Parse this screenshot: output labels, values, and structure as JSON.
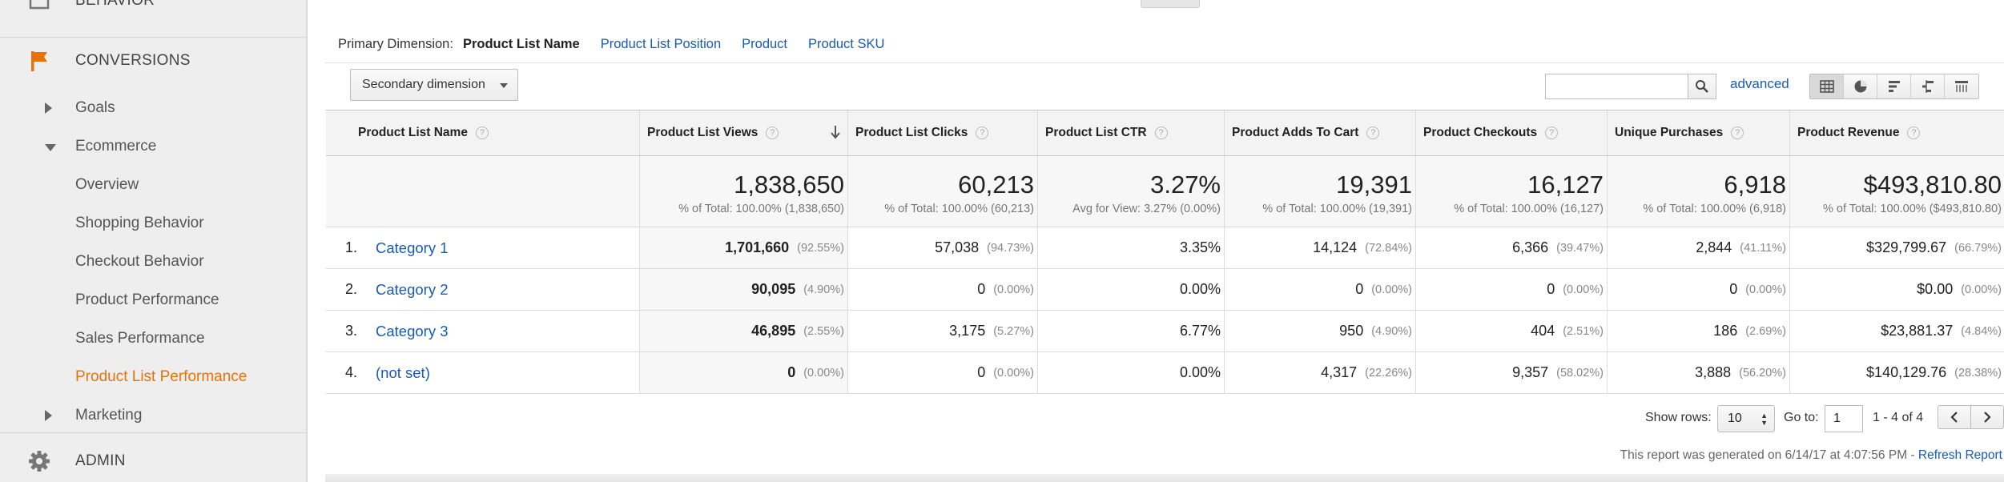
{
  "sidebar": {
    "behavior_label": "BEHAVIOR",
    "conversions_label": "CONVERSIONS",
    "admin_label": "ADMIN",
    "goals_label": "Goals",
    "ecommerce_label": "Ecommerce",
    "ecommerce_items": [
      {
        "label": "Overview"
      },
      {
        "label": "Shopping Behavior"
      },
      {
        "label": "Checkout Behavior"
      },
      {
        "label": "Product Performance"
      },
      {
        "label": "Sales Performance"
      },
      {
        "label": "Product List Performance"
      }
    ],
    "marketing_label": "Marketing",
    "active_color": "#e8710a",
    "icons": {
      "behavior": "behavior-report-icon",
      "conversions": "flag-icon",
      "admin": "gear-icon"
    }
  },
  "dimensions": {
    "label": "Primary Dimension:",
    "active": "Product List Name",
    "links": [
      "Product List Position",
      "Product",
      "Product SKU"
    ]
  },
  "toolbar": {
    "secondary_dimension": "Secondary dimension",
    "search_value": "",
    "advanced": "advanced",
    "view_icons": [
      "table-view-icon",
      "pie-view-icon",
      "performance-view-icon",
      "comparison-view-icon",
      "pivot-view-icon"
    ]
  },
  "table": {
    "columns": [
      "Product List Name",
      "Product List Views",
      "Product List Clicks",
      "Product List CTR",
      "Product Adds To Cart",
      "Product Checkouts",
      "Unique Purchases",
      "Product Revenue"
    ],
    "totals": [
      {
        "value": "1,838,650",
        "sub": "% of Total: 100.00% (1,838,650)"
      },
      {
        "value": "60,213",
        "sub": "% of Total: 100.00% (60,213)"
      },
      {
        "value": "3.27%",
        "sub": "Avg for View: 3.27% (0.00%)"
      },
      {
        "value": "19,391",
        "sub": "% of Total: 100.00% (19,391)"
      },
      {
        "value": "16,127",
        "sub": "% of Total: 100.00% (16,127)"
      },
      {
        "value": "6,918",
        "sub": "% of Total: 100.00% (6,918)"
      },
      {
        "value": "$493,810.80",
        "sub": "% of Total: 100.00% ($493,810.80)"
      }
    ],
    "rows": [
      {
        "index": "1.",
        "name": "Category 1",
        "cells": [
          {
            "v": "1,701,660",
            "p": "(92.55%)"
          },
          {
            "v": "57,038",
            "p": "(94.73%)"
          },
          {
            "v": "3.35%",
            "p": ""
          },
          {
            "v": "14,124",
            "p": "(72.84%)"
          },
          {
            "v": "6,366",
            "p": "(39.47%)"
          },
          {
            "v": "2,844",
            "p": "(41.11%)"
          },
          {
            "v": "$329,799.67",
            "p": "(66.79%)"
          }
        ]
      },
      {
        "index": "2.",
        "name": "Category 2",
        "cells": [
          {
            "v": "90,095",
            "p": "(4.90%)"
          },
          {
            "v": "0",
            "p": "(0.00%)"
          },
          {
            "v": "0.00%",
            "p": ""
          },
          {
            "v": "0",
            "p": "(0.00%)"
          },
          {
            "v": "0",
            "p": "(0.00%)"
          },
          {
            "v": "0",
            "p": "(0.00%)"
          },
          {
            "v": "$0.00",
            "p": "(0.00%)"
          }
        ]
      },
      {
        "index": "3.",
        "name": "Category 3",
        "cells": [
          {
            "v": "46,895",
            "p": "(2.55%)"
          },
          {
            "v": "3,175",
            "p": "(5.27%)"
          },
          {
            "v": "6.77%",
            "p": ""
          },
          {
            "v": "950",
            "p": "(4.90%)"
          },
          {
            "v": "404",
            "p": "(2.51%)"
          },
          {
            "v": "186",
            "p": "(2.69%)"
          },
          {
            "v": "$23,881.37",
            "p": "(4.84%)"
          }
        ]
      },
      {
        "index": "4.",
        "name": "(not set)",
        "cells": [
          {
            "v": "0",
            "p": "(0.00%)"
          },
          {
            "v": "0",
            "p": "(0.00%)"
          },
          {
            "v": "0.00%",
            "p": ""
          },
          {
            "v": "4,317",
            "p": "(22.26%)"
          },
          {
            "v": "9,357",
            "p": "(58.02%)"
          },
          {
            "v": "3,888",
            "p": "(56.20%)"
          },
          {
            "v": "$140,129.76",
            "p": "(28.38%)"
          }
        ]
      }
    ]
  },
  "pager": {
    "show_rows_label": "Show rows:",
    "show_rows_value": "10",
    "goto_label": "Go to:",
    "goto_value": "1",
    "range": "1 - 4 of 4"
  },
  "footer": {
    "generated": "This report was generated on 6/14/17 at 4:07:56 PM - ",
    "refresh": "Refresh Report"
  }
}
